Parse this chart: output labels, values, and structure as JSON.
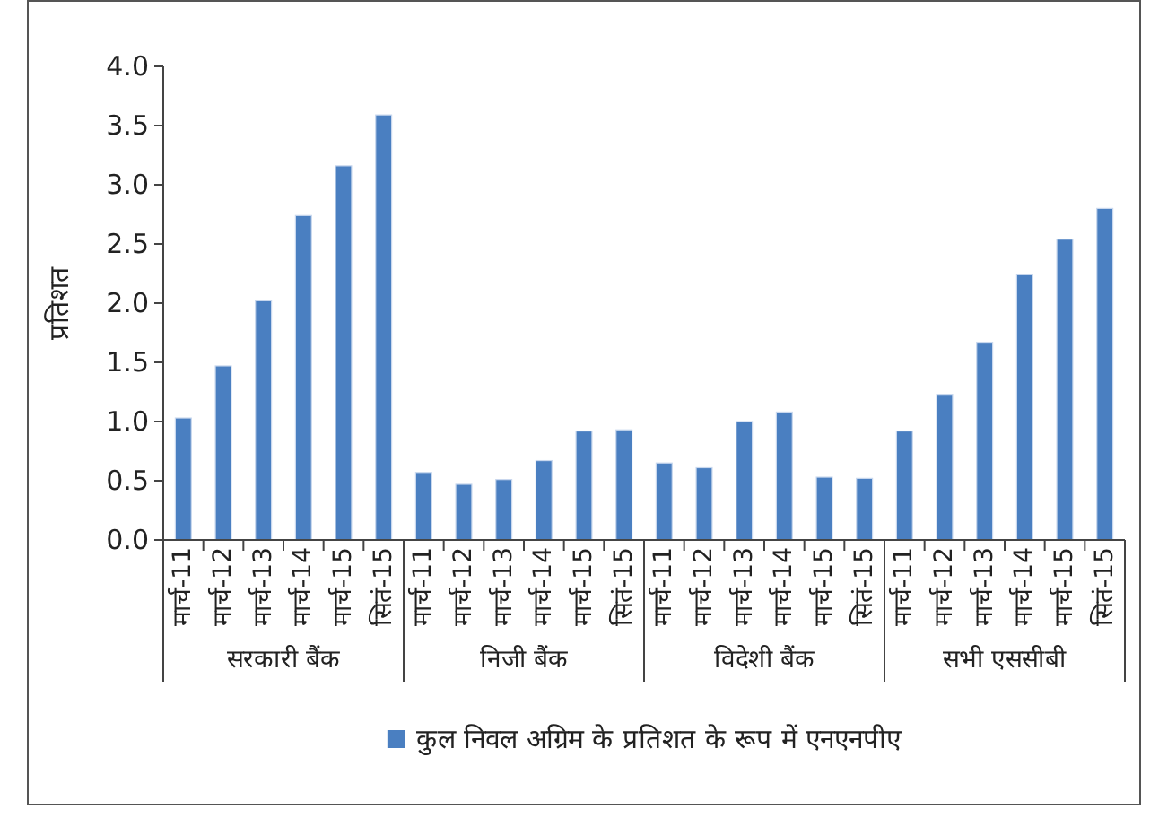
{
  "chart_data": {
    "type": "bar",
    "ylabel": "प्रतिशत",
    "categories": [
      "मार्च-11",
      "मार्च-12",
      "मार्च-13",
      "मार्च-14",
      "मार्च-15",
      "सितं-15",
      "मार्च-11",
      "मार्च-12",
      "मार्च-13",
      "मार्च-14",
      "मार्च-15",
      "सितं-15",
      "मार्च-11",
      "मार्च-12",
      "मार्च-13",
      "मार्च-14",
      "मार्च-15",
      "सितं-15",
      "मार्च-11",
      "मार्च-12",
      "मार्च-13",
      "मार्च-14",
      "मार्च-15",
      "सितं-15"
    ],
    "series": [
      {
        "name": "कुल निवल अग्रिम के प्रतिशत के रूप में एनएनपीए",
        "color": "#4a7fc1",
        "values": [
          1.03,
          1.47,
          2.02,
          2.74,
          3.16,
          3.59,
          0.57,
          0.47,
          0.51,
          0.67,
          0.92,
          0.93,
          0.65,
          0.61,
          1.0,
          1.08,
          0.53,
          0.52,
          0.92,
          1.23,
          1.67,
          2.24,
          2.54,
          2.8
        ]
      }
    ],
    "annotations": [
      "सरकारी बैंक",
      "निजी बैंक",
      "विदेशी बैंक",
      "सभी एससीबी"
    ],
    "ylim": [
      0,
      4.0
    ],
    "yticks": [
      {
        "value": 0,
        "label": "0.0"
      },
      {
        "value": 0.5,
        "label": "0.5"
      },
      {
        "value": 1,
        "label": "1.0"
      },
      {
        "value": 1.5,
        "label": "1.5"
      },
      {
        "value": 2,
        "label": "2.0"
      },
      {
        "value": 2.5,
        "label": "2.5"
      },
      {
        "value": 3,
        "label": "3.0"
      },
      {
        "value": 3.5,
        "label": "3.5"
      },
      {
        "value": 4,
        "label": "4.0"
      }
    ],
    "grid": false,
    "legend": "bottom"
  }
}
